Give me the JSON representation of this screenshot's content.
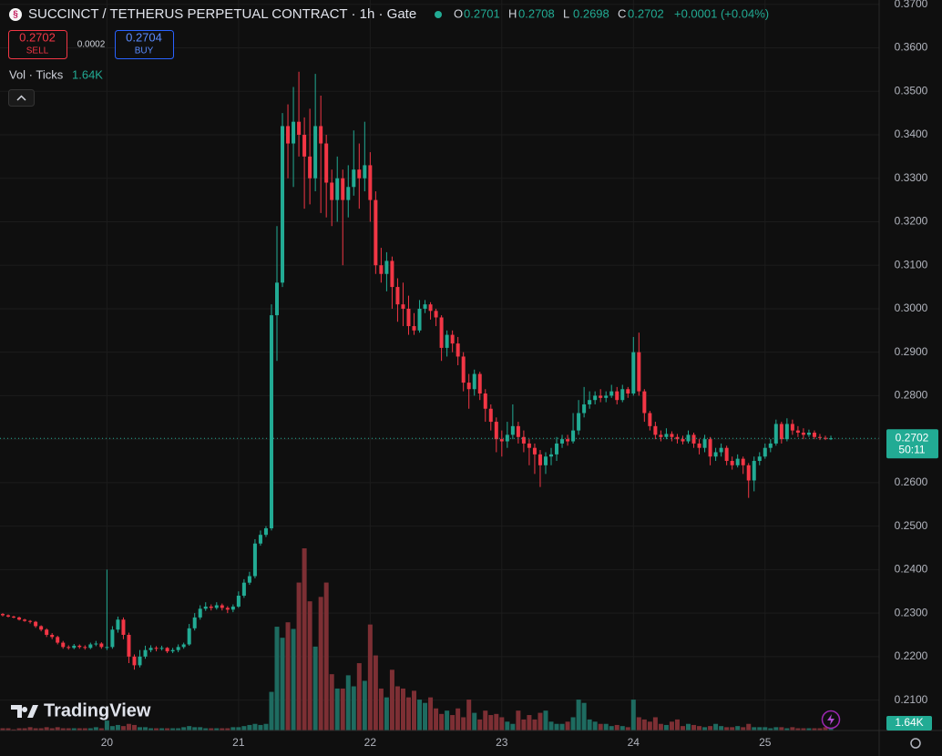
{
  "header": {
    "title": "SUCCINCT / TETHERUS PERPETUAL CONTRACT · 1h · Gate",
    "ohlc": [
      {
        "k": "O",
        "v": "0.2701"
      },
      {
        "k": "H",
        "v": "0.2708"
      },
      {
        "k": "L",
        "v": "0.2698"
      },
      {
        "k": "C",
        "v": "0.2702"
      }
    ],
    "change": "+0.0001 (+0.04%)",
    "sell": {
      "price": "0.2702",
      "label": "SELL"
    },
    "spread": "0.0002",
    "buy": {
      "price": "0.2704",
      "label": "BUY"
    },
    "volume_legend": {
      "label": "Vol · Ticks",
      "value": "1.64K"
    },
    "price_badge": {
      "price": "0.2702",
      "countdown": "50:11"
    },
    "volume_badge": "1.64K",
    "watermark": "TradingView"
  },
  "chart_data": {
    "type": "candlestick",
    "up_color": "#22ab94",
    "down_color": "#f23645",
    "volume_up_color": "#1e6b60",
    "volume_down_color": "#7d2f34",
    "grid": true,
    "last_price": 0.2702,
    "categories": [
      null,
      null,
      null,
      null,
      null,
      null,
      null,
      null,
      null,
      null,
      null,
      null,
      null,
      null,
      null,
      null,
      null,
      null,
      null,
      "20",
      null,
      null,
      null,
      null,
      null,
      null,
      null,
      null,
      null,
      null,
      null,
      null,
      null,
      null,
      null,
      null,
      null,
      null,
      null,
      null,
      null,
      null,
      null,
      "21",
      null,
      null,
      null,
      null,
      null,
      null,
      null,
      null,
      null,
      null,
      null,
      null,
      null,
      null,
      null,
      null,
      null,
      null,
      null,
      null,
      null,
      null,
      null,
      "22",
      null,
      null,
      null,
      null,
      null,
      null,
      null,
      null,
      null,
      null,
      null,
      null,
      null,
      null,
      null,
      null,
      null,
      null,
      null,
      null,
      null,
      null,
      null,
      "23",
      null,
      null,
      null,
      null,
      null,
      null,
      null,
      null,
      null,
      null,
      null,
      null,
      null,
      null,
      null,
      null,
      null,
      null,
      null,
      null,
      null,
      null,
      null,
      "24",
      null,
      null,
      null,
      null,
      null,
      null,
      null,
      null,
      null,
      null,
      null,
      null,
      null,
      null,
      null,
      null,
      null,
      null,
      null,
      null,
      null,
      null,
      null,
      "25",
      null,
      null,
      null,
      null,
      null,
      null,
      null,
      null,
      null,
      null,
      null,
      null
    ],
    "open": [
      0.2298,
      0.2295,
      0.2292,
      0.229,
      0.2285,
      0.2282,
      0.228,
      0.227,
      0.2262,
      0.225,
      0.2245,
      0.2232,
      0.2222,
      0.222,
      0.2225,
      0.2222,
      0.222,
      0.2228,
      0.223,
      0.2222,
      0.2222,
      0.2262,
      0.2285,
      0.225,
      0.22,
      0.218,
      0.22,
      0.2215,
      0.222,
      0.2218,
      0.222,
      0.2212,
      0.2215,
      0.2222,
      0.2228,
      0.2265,
      0.229,
      0.231,
      0.2315,
      0.2312,
      0.2318,
      0.2312,
      0.2308,
      0.2315,
      0.234,
      0.237,
      0.2385,
      0.246,
      0.248,
      0.2495,
      0.2985,
      0.306,
      0.342,
      0.338,
      0.343,
      0.34,
      0.335,
      0.33,
      0.342,
      0.338,
      0.329,
      0.325,
      0.33,
      0.325,
      0.328,
      0.332,
      0.33,
      0.333,
      0.325,
      0.31,
      0.308,
      0.311,
      0.305,
      0.301,
      0.3,
      0.296,
      0.295,
      0.3,
      0.301,
      0.2995,
      0.298,
      0.291,
      0.294,
      0.292,
      0.289,
      0.283,
      0.2815,
      0.285,
      0.2805,
      0.277,
      0.274,
      0.27,
      0.2695,
      0.271,
      0.273,
      0.2705,
      0.269,
      0.268,
      0.2665,
      0.264,
      0.266,
      0.2665,
      0.269,
      0.27,
      0.2695,
      0.272,
      0.276,
      0.278,
      0.279,
      0.28,
      0.2795,
      0.28,
      0.281,
      0.279,
      0.2815,
      0.2805,
      0.29,
      0.281,
      0.276,
      0.273,
      0.271,
      0.2705,
      0.2712,
      0.2705,
      0.27,
      0.2695,
      0.271,
      0.269,
      0.268,
      0.27,
      0.266,
      0.267,
      0.268,
      0.265,
      0.264,
      0.2655,
      0.264,
      0.2605,
      0.265,
      0.266,
      0.268,
      0.269,
      0.2735,
      0.27,
      0.2735,
      0.272,
      0.2715,
      0.271,
      0.2715,
      0.2705,
      0.2703,
      0.2701
    ],
    "high": [
      0.23,
      0.2297,
      0.2294,
      0.2292,
      0.2287,
      0.2284,
      0.2282,
      0.2272,
      0.2265,
      0.2254,
      0.2248,
      0.2236,
      0.2226,
      0.2229,
      0.2228,
      0.2226,
      0.2232,
      0.2236,
      0.2233,
      0.24,
      0.227,
      0.2292,
      0.229,
      0.2255,
      0.2205,
      0.2215,
      0.2225,
      0.2226,
      0.2224,
      0.2225,
      0.2222,
      0.222,
      0.2228,
      0.2232,
      0.2275,
      0.23,
      0.2318,
      0.2325,
      0.232,
      0.2325,
      0.2322,
      0.2316,
      0.232,
      0.235,
      0.2378,
      0.2395,
      0.247,
      0.249,
      0.25,
      0.301,
      0.319,
      0.345,
      0.347,
      0.351,
      0.3545,
      0.344,
      0.346,
      0.354,
      0.349,
      0.34,
      0.332,
      0.335,
      0.332,
      0.333,
      0.341,
      0.338,
      0.343,
      0.336,
      0.327,
      0.314,
      0.313,
      0.312,
      0.307,
      0.306,
      0.303,
      0.299,
      0.302,
      0.302,
      0.3015,
      0.3,
      0.2985,
      0.295,
      0.295,
      0.2935,
      0.29,
      0.285,
      0.286,
      0.2855,
      0.2815,
      0.278,
      0.275,
      0.272,
      0.274,
      0.278,
      0.274,
      0.272,
      0.27,
      0.269,
      0.2675,
      0.267,
      0.268,
      0.2705,
      0.271,
      0.271,
      0.276,
      0.279,
      0.282,
      0.281,
      0.281,
      0.2815,
      0.281,
      0.2825,
      0.282,
      0.2825,
      0.282,
      0.2935,
      0.2945,
      0.2815,
      0.2765,
      0.274,
      0.272,
      0.2725,
      0.2718,
      0.2712,
      0.2708,
      0.272,
      0.2715,
      0.27,
      0.271,
      0.2705,
      0.268,
      0.269,
      0.2685,
      0.266,
      0.2665,
      0.266,
      0.2645,
      0.266,
      0.267,
      0.269,
      0.27,
      0.2745,
      0.274,
      0.2748,
      0.2745,
      0.273,
      0.2725,
      0.2722,
      0.272,
      0.2712,
      0.2708,
      0.2708
    ],
    "low": [
      0.2292,
      0.229,
      0.2288,
      0.2283,
      0.228,
      0.2276,
      0.2266,
      0.2258,
      0.2245,
      0.224,
      0.2228,
      0.2218,
      0.2216,
      0.2217,
      0.2218,
      0.2216,
      0.2217,
      0.2224,
      0.2218,
      0.2215,
      0.2218,
      0.2255,
      0.224,
      0.2185,
      0.217,
      0.2175,
      0.2195,
      0.221,
      0.2212,
      0.2214,
      0.2208,
      0.2208,
      0.221,
      0.2218,
      0.2225,
      0.226,
      0.2285,
      0.2305,
      0.2306,
      0.2308,
      0.2306,
      0.23,
      0.2302,
      0.2312,
      0.2335,
      0.2365,
      0.238,
      0.2455,
      0.2475,
      0.249,
      0.288,
      0.305,
      0.33,
      0.328,
      0.335,
      0.323,
      0.324,
      0.327,
      0.322,
      0.321,
      0.319,
      0.32,
      0.31,
      0.321,
      0.326,
      0.323,
      0.327,
      0.32,
      0.308,
      0.306,
      0.304,
      0.3,
      0.297,
      0.296,
      0.294,
      0.294,
      0.2945,
      0.299,
      0.2975,
      0.296,
      0.288,
      0.289,
      0.29,
      0.287,
      0.281,
      0.277,
      0.28,
      0.279,
      0.274,
      0.272,
      0.267,
      0.266,
      0.268,
      0.27,
      0.269,
      0.267,
      0.264,
      0.262,
      0.259,
      0.262,
      0.264,
      0.265,
      0.268,
      0.2685,
      0.269,
      0.271,
      0.275,
      0.277,
      0.278,
      0.2785,
      0.2785,
      0.2795,
      0.278,
      0.2785,
      0.2795,
      0.28,
      0.28,
      0.274,
      0.272,
      0.27,
      0.2695,
      0.27,
      0.2695,
      0.269,
      0.2688,
      0.269,
      0.268,
      0.2665,
      0.267,
      0.264,
      0.265,
      0.266,
      0.264,
      0.263,
      0.2635,
      0.262,
      0.2565,
      0.258,
      0.264,
      0.2655,
      0.267,
      0.2685,
      0.269,
      0.2695,
      0.271,
      0.2705,
      0.27,
      0.2705,
      0.27,
      0.2698,
      0.2698,
      0.2698
    ],
    "close": [
      0.2295,
      0.2292,
      0.229,
      0.2285,
      0.2282,
      0.228,
      0.227,
      0.2262,
      0.225,
      0.2245,
      0.2232,
      0.2222,
      0.222,
      0.2225,
      0.2222,
      0.222,
      0.2228,
      0.223,
      0.2222,
      0.2222,
      0.2262,
      0.2285,
      0.225,
      0.22,
      0.218,
      0.22,
      0.2215,
      0.222,
      0.2218,
      0.222,
      0.2212,
      0.2215,
      0.2222,
      0.2228,
      0.2265,
      0.229,
      0.231,
      0.2315,
      0.2312,
      0.2318,
      0.2312,
      0.2308,
      0.2315,
      0.234,
      0.237,
      0.2385,
      0.246,
      0.248,
      0.2495,
      0.2985,
      0.306,
      0.342,
      0.338,
      0.343,
      0.34,
      0.335,
      0.33,
      0.342,
      0.338,
      0.329,
      0.325,
      0.33,
      0.325,
      0.328,
      0.332,
      0.33,
      0.333,
      0.325,
      0.31,
      0.308,
      0.311,
      0.305,
      0.301,
      0.3,
      0.296,
      0.295,
      0.3,
      0.301,
      0.2995,
      0.298,
      0.291,
      0.294,
      0.292,
      0.289,
      0.283,
      0.2815,
      0.285,
      0.2805,
      0.277,
      0.274,
      0.27,
      0.2695,
      0.271,
      0.273,
      0.2705,
      0.269,
      0.268,
      0.2665,
      0.264,
      0.266,
      0.2665,
      0.269,
      0.27,
      0.2695,
      0.272,
      0.276,
      0.278,
      0.279,
      0.28,
      0.2795,
      0.28,
      0.281,
      0.279,
      0.2815,
      0.2805,
      0.29,
      0.281,
      0.276,
      0.273,
      0.271,
      0.2705,
      0.2712,
      0.2705,
      0.27,
      0.2695,
      0.271,
      0.269,
      0.268,
      0.27,
      0.266,
      0.267,
      0.268,
      0.265,
      0.264,
      0.2655,
      0.264,
      0.2605,
      0.265,
      0.266,
      0.268,
      0.269,
      0.2735,
      0.27,
      0.2735,
      0.272,
      0.2715,
      0.271,
      0.2715,
      0.2705,
      0.2703,
      0.2701,
      0.2702
    ],
    "volume": [
      2,
      2,
      1,
      2,
      2,
      3,
      2,
      2,
      3,
      2,
      3,
      2,
      2,
      2,
      2,
      2,
      2,
      3,
      2,
      9,
      4,
      5,
      4,
      6,
      5,
      3,
      3,
      2,
      2,
      2,
      2,
      2,
      2,
      3,
      4,
      3,
      3,
      2,
      2,
      2,
      2,
      2,
      3,
      3,
      4,
      5,
      6,
      5,
      6,
      35,
      94,
      84,
      98,
      92,
      134,
      165,
      117,
      76,
      121,
      134,
      51,
      38,
      38,
      50,
      40,
      61,
      45,
      96,
      68,
      38,
      30,
      55,
      40,
      38,
      30,
      36,
      28,
      25,
      30,
      20,
      15,
      18,
      14,
      20,
      12,
      28,
      16,
      10,
      18,
      14,
      15,
      12,
      8,
      6,
      18,
      10,
      14,
      10,
      16,
      18,
      8,
      6,
      6,
      8,
      12,
      28,
      25,
      10,
      8,
      6,
      6,
      4,
      5,
      4,
      3,
      28,
      12,
      10,
      8,
      12,
      6,
      5,
      8,
      10,
      4,
      6,
      5,
      4,
      3,
      4,
      6,
      4,
      3,
      3,
      4,
      3,
      6,
      3,
      3,
      3,
      2,
      3,
      3,
      2,
      3,
      2,
      2,
      2,
      2,
      2,
      3,
      1.64
    ],
    "volume_lim": [
      0,
      165
    ],
    "ylim": [
      0.203,
      0.371
    ],
    "yticks": [
      {
        "value": 0.21,
        "label": "0.2100"
      },
      {
        "value": 0.22,
        "label": "0.2200"
      },
      {
        "value": 0.23,
        "label": "0.2300"
      },
      {
        "value": 0.24,
        "label": "0.2400"
      },
      {
        "value": 0.25,
        "label": "0.2500"
      },
      {
        "value": 0.26,
        "label": "0.2600"
      },
      {
        "value": 0.27,
        "label": "0.2700"
      },
      {
        "value": 0.28,
        "label": "0.2800"
      },
      {
        "value": 0.29,
        "label": "0.2900"
      },
      {
        "value": 0.3,
        "label": "0.3000"
      },
      {
        "value": 0.31,
        "label": "0.3100"
      },
      {
        "value": 0.32,
        "label": "0.3200"
      },
      {
        "value": 0.33,
        "label": "0.3300"
      },
      {
        "value": 0.34,
        "label": "0.3400"
      },
      {
        "value": 0.35,
        "label": "0.3500"
      },
      {
        "value": 0.36,
        "label": "0.3600"
      },
      {
        "value": 0.37,
        "label": "0.3700"
      }
    ]
  }
}
